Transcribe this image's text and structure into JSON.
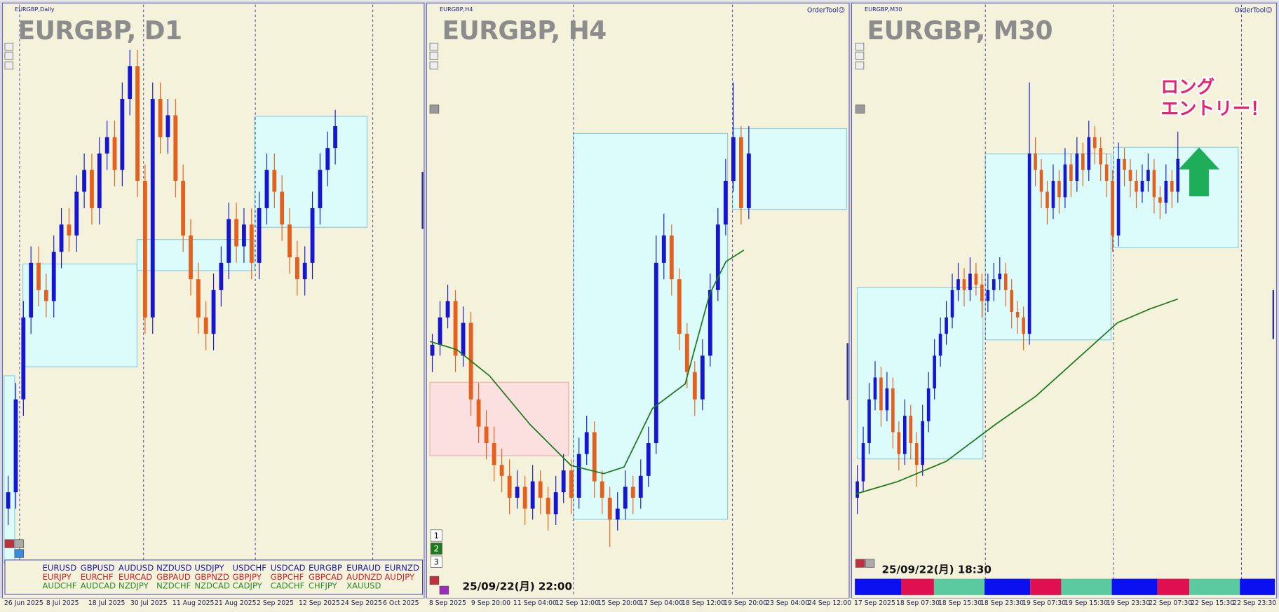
{
  "up_color": "#1616d2",
  "down_color": "#e5601c",
  "panels": [
    {
      "symbol_label": "EURGBP,Daily",
      "title": "EURGBP, D1",
      "ylim": [
        0,
        100
      ],
      "dates": [
        "26 Jun 2025",
        "8 Jul 2025",
        "18 Jul 2025",
        "30 Jul 2025",
        "11 Aug 2025",
        "21 Aug 2025",
        "2 Sep 2025",
        "12 Sep 2025",
        "24 Sep 2025",
        "6 Oct 2025"
      ],
      "candles": [
        [
          10,
          16,
          7,
          13
        ],
        [
          13,
          33,
          10,
          30
        ],
        [
          30,
          48,
          27,
          45
        ],
        [
          45,
          58,
          42,
          55
        ],
        [
          55,
          58,
          47,
          50
        ],
        [
          50,
          53,
          45,
          48
        ],
        [
          48,
          60,
          45,
          57
        ],
        [
          57,
          65,
          54,
          62
        ],
        [
          62,
          65,
          57,
          60
        ],
        [
          60,
          71,
          57,
          68
        ],
        [
          68,
          75,
          65,
          72
        ],
        [
          72,
          75,
          62,
          65
        ],
        [
          65,
          78,
          62,
          75
        ],
        [
          75,
          81,
          72,
          78
        ],
        [
          78,
          81,
          69,
          72
        ],
        [
          72,
          88,
          69,
          85
        ],
        [
          85,
          94,
          82,
          91
        ],
        [
          91,
          94,
          67,
          70
        ],
        [
          70,
          73,
          42,
          45
        ],
        [
          45,
          88,
          42,
          85
        ],
        [
          85,
          88,
          75,
          78
        ],
        [
          78,
          85,
          75,
          82
        ],
        [
          82,
          85,
          67,
          70
        ],
        [
          70,
          73,
          57,
          60
        ],
        [
          60,
          63,
          49,
          52
        ],
        [
          52,
          55,
          42,
          45
        ],
        [
          45,
          48,
          39,
          42
        ],
        [
          42,
          53,
          39,
          50
        ],
        [
          50,
          58,
          47,
          55
        ],
        [
          55,
          66,
          52,
          63
        ],
        [
          63,
          66,
          55,
          58
        ],
        [
          58,
          65,
          55,
          62
        ],
        [
          62,
          65,
          52,
          55
        ],
        [
          55,
          68,
          52,
          65
        ],
        [
          65,
          75,
          62,
          72
        ],
        [
          72,
          75,
          65,
          68
        ],
        [
          68,
          71,
          59,
          62
        ],
        [
          62,
          65,
          53,
          56
        ],
        [
          56,
          59,
          49,
          52
        ],
        [
          52,
          58,
          49,
          55
        ],
        [
          55,
          68,
          52,
          65
        ],
        [
          65,
          75,
          62,
          72
        ],
        [
          72,
          79,
          69,
          76
        ],
        [
          76,
          83,
          73,
          80
        ]
      ],
      "pairs": [
        [
          "EURUSD",
          "GBPUSD",
          "AUDUSD",
          "NZDUSD",
          "USDJPY",
          "USDCHF",
          "USDCAD",
          "EURGBP",
          "EURAUD",
          "EURNZD"
        ],
        [
          "EURJPY",
          "EURCHF",
          "EURCAD",
          "GBPAUD",
          "GBPNZD",
          "GBPJPY",
          "GBPCHF",
          "GBPCAD",
          "AUDNZD",
          "AUDJPY"
        ],
        [
          "AUDCHF",
          "AUDCAD",
          "NZDJPY",
          "NZDCHF",
          "NZDCAD",
          "CADJPY",
          "CADCHF",
          "CHFJPY",
          "XAUUSD"
        ]
      ]
    },
    {
      "symbol_label": "EURGBP,H4",
      "title": "EURGBP, H4",
      "order_tool": "OrderTool☺",
      "stamp": "25/09/22(月) 22:00",
      "buttons": [
        "1",
        "2",
        "3"
      ],
      "ylim": [
        0,
        100
      ],
      "dates": [
        "8 Sep 2025",
        "9 Sep 20:00",
        "11 Sep 04:00",
        "12 Sep 12:00",
        "15 Sep 20:00",
        "17 Sep 04:00",
        "18 Sep 12:00",
        "19 Sep 20:00",
        "23 Sep 04:00",
        "24 Sep 12:00"
      ],
      "candles": [
        [
          38,
          42,
          35,
          40
        ],
        [
          40,
          48,
          38,
          45
        ],
        [
          45,
          51,
          43,
          48
        ],
        [
          48,
          50,
          35,
          38
        ],
        [
          38,
          47,
          36,
          44
        ],
        [
          44,
          46,
          27,
          30
        ],
        [
          30,
          33,
          22,
          25
        ],
        [
          25,
          28,
          19,
          22
        ],
        [
          22,
          25,
          15,
          18
        ],
        [
          18,
          21,
          13,
          16
        ],
        [
          16,
          19,
          9,
          12
        ],
        [
          12,
          17,
          10,
          14
        ],
        [
          14,
          16,
          7,
          10
        ],
        [
          10,
          18,
          8,
          15
        ],
        [
          15,
          17,
          9,
          12
        ],
        [
          12,
          14,
          6,
          9
        ],
        [
          9,
          16,
          7,
          13
        ],
        [
          13,
          20,
          11,
          17
        ],
        [
          17,
          19,
          9,
          12
        ],
        [
          12,
          23,
          10,
          20
        ],
        [
          20,
          27,
          18,
          24
        ],
        [
          24,
          26,
          12,
          15
        ],
        [
          15,
          17,
          9,
          12
        ],
        [
          12,
          14,
          3,
          8
        ],
        [
          8,
          13,
          6,
          10
        ],
        [
          10,
          17,
          8,
          14
        ],
        [
          14,
          16,
          9,
          12
        ],
        [
          12,
          19,
          10,
          16
        ],
        [
          16,
          25,
          14,
          22
        ],
        [
          22,
          60,
          20,
          55
        ],
        [
          55,
          64,
          52,
          60
        ],
        [
          60,
          62,
          49,
          52
        ],
        [
          52,
          54,
          39,
          42
        ],
        [
          42,
          44,
          32,
          35
        ],
        [
          35,
          37,
          27,
          30
        ],
        [
          30,
          41,
          28,
          38
        ],
        [
          38,
          53,
          36,
          50
        ],
        [
          50,
          65,
          48,
          62
        ],
        [
          62,
          74,
          60,
          70
        ],
        [
          70,
          88,
          68,
          78
        ],
        [
          78,
          80,
          62,
          65
        ],
        [
          65,
          80,
          63,
          75
        ]
      ]
    },
    {
      "symbol_label": "EURGBP,M30",
      "title": "EURGBP, M30",
      "order_tool": "OrderTool☺",
      "stamp": "25/09/22(月) 18:30",
      "annotation": [
        "ロング",
        "エントリー！"
      ],
      "ylim": [
        0,
        100
      ],
      "dates": [
        "17 Sep 2025",
        "18 Sep 07:30",
        "18 Sep 15:30",
        "18 Sep 23:30",
        "19 Sep 07:30",
        "19 Sep 15:30",
        "19 Sep 23:30",
        "22 Sep 07:30",
        "22 Sep 15:30",
        "22 Sep 23:30"
      ],
      "candles": [
        [
          12,
          18,
          9,
          15
        ],
        [
          15,
          25,
          13,
          22
        ],
        [
          22,
          33,
          20,
          30
        ],
        [
          30,
          37,
          28,
          34
        ],
        [
          34,
          36,
          25,
          28
        ],
        [
          28,
          35,
          26,
          32
        ],
        [
          32,
          34,
          21,
          24
        ],
        [
          24,
          26,
          17,
          20
        ],
        [
          20,
          30,
          18,
          27
        ],
        [
          27,
          29,
          19,
          22
        ],
        [
          22,
          24,
          14,
          18
        ],
        [
          18,
          29,
          16,
          26
        ],
        [
          26,
          35,
          24,
          32
        ],
        [
          32,
          41,
          30,
          38
        ],
        [
          38,
          45,
          36,
          42
        ],
        [
          42,
          48,
          40,
          45
        ],
        [
          45,
          53,
          43,
          50
        ],
        [
          50,
          55,
          48,
          52
        ],
        [
          52,
          54,
          47,
          50
        ],
        [
          50,
          56,
          48,
          53
        ],
        [
          53,
          55,
          49,
          51
        ],
        [
          51,
          53,
          45,
          48
        ],
        [
          48,
          53,
          46,
          50
        ],
        [
          50,
          55,
          48,
          52
        ],
        [
          52,
          56,
          50,
          53
        ],
        [
          53,
          55,
          47,
          50
        ],
        [
          50,
          52,
          43,
          46
        ],
        [
          46,
          48,
          42,
          45
        ],
        [
          45,
          47,
          39,
          42
        ],
        [
          42,
          88,
          40,
          75
        ],
        [
          75,
          78,
          69,
          72
        ],
        [
          72,
          74,
          65,
          68
        ],
        [
          68,
          70,
          62,
          65
        ],
        [
          65,
          73,
          63,
          70
        ],
        [
          70,
          72,
          64,
          67
        ],
        [
          67,
          76,
          65,
          73
        ],
        [
          73,
          75,
          67,
          70
        ],
        [
          70,
          78,
          68,
          75
        ],
        [
          75,
          77,
          69,
          72
        ],
        [
          72,
          81,
          70,
          78
        ],
        [
          78,
          80,
          73,
          76
        ],
        [
          76,
          78,
          70,
          73
        ],
        [
          73,
          75,
          67,
          70
        ],
        [
          70,
          72,
          57,
          60
        ],
        [
          60,
          77,
          58,
          74
        ],
        [
          74,
          76,
          69,
          72
        ],
        [
          72,
          74,
          67,
          70
        ],
        [
          70,
          72,
          65,
          68
        ],
        [
          68,
          73,
          66,
          70
        ],
        [
          70,
          75,
          68,
          72
        ],
        [
          72,
          74,
          64,
          67
        ],
        [
          67,
          69,
          63,
          66
        ],
        [
          66,
          73,
          64,
          70
        ],
        [
          70,
          72,
          65,
          68
        ],
        [
          68,
          79,
          66,
          74
        ]
      ]
    }
  ]
}
